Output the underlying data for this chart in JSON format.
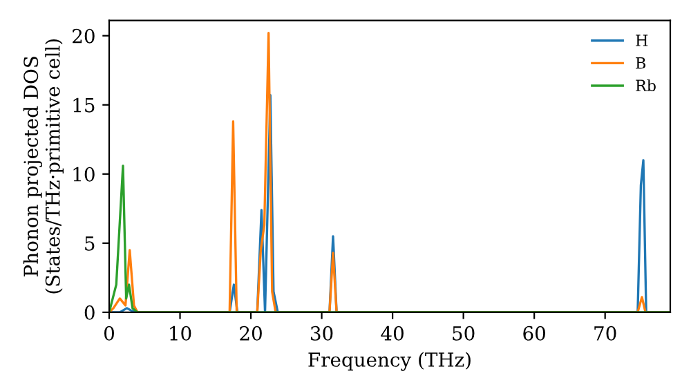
{
  "chart_data": {
    "type": "line",
    "xlabel": "Frequency (THz)",
    "ylabel": "Phonon projected DOS\n(States/THz·primitive cell)",
    "xlim": [
      0,
      79.2
    ],
    "ylim": [
      0,
      21.1
    ],
    "xticks": [
      0,
      10,
      20,
      30,
      40,
      50,
      60,
      70
    ],
    "yticks": [
      0,
      5,
      10,
      15,
      20
    ],
    "grid": false,
    "legend": "top right",
    "marker": "none",
    "line_style": "solid",
    "series": [
      {
        "name": "H",
        "color": "#1f77b4",
        "x": [
          0,
          1.5,
          2.5,
          3.2,
          3.8,
          17,
          17.6,
          18.1,
          20.9,
          21.5,
          22,
          22.75,
          23.2,
          23.8,
          31.1,
          31.6,
          32.1,
          74.6,
          75.05,
          75.4,
          75.8,
          79.2
        ],
        "values": [
          0,
          0,
          0.3,
          0.1,
          0,
          0,
          2,
          0,
          0,
          7.4,
          0,
          15.7,
          1.5,
          0,
          0,
          5.5,
          0,
          0,
          9.2,
          11,
          0,
          0
        ]
      },
      {
        "name": "B",
        "color": "#ff7f0e",
        "x": [
          0,
          0.6,
          1.5,
          2.3,
          2.9,
          3.5,
          4,
          17,
          17.5,
          18,
          20.9,
          21.4,
          21.9,
          22.5,
          23,
          23.5,
          31.1,
          31.6,
          32.1,
          74.6,
          75.2,
          75.7,
          79.2
        ],
        "values": [
          0,
          0.3,
          1.0,
          0.5,
          4.5,
          0.5,
          0,
          0,
          13.8,
          0,
          0,
          4.5,
          6.3,
          20.2,
          1.5,
          0,
          0,
          4.3,
          0,
          0,
          1.1,
          0,
          0
        ]
      },
      {
        "name": "Rb",
        "color": "#2ca02c",
        "x": [
          0,
          1.0,
          1.95,
          2.4,
          2.8,
          3.3,
          4,
          79.2
        ],
        "values": [
          0,
          2,
          10.6,
          1.0,
          2.0,
          0.3,
          0,
          0
        ]
      }
    ]
  }
}
